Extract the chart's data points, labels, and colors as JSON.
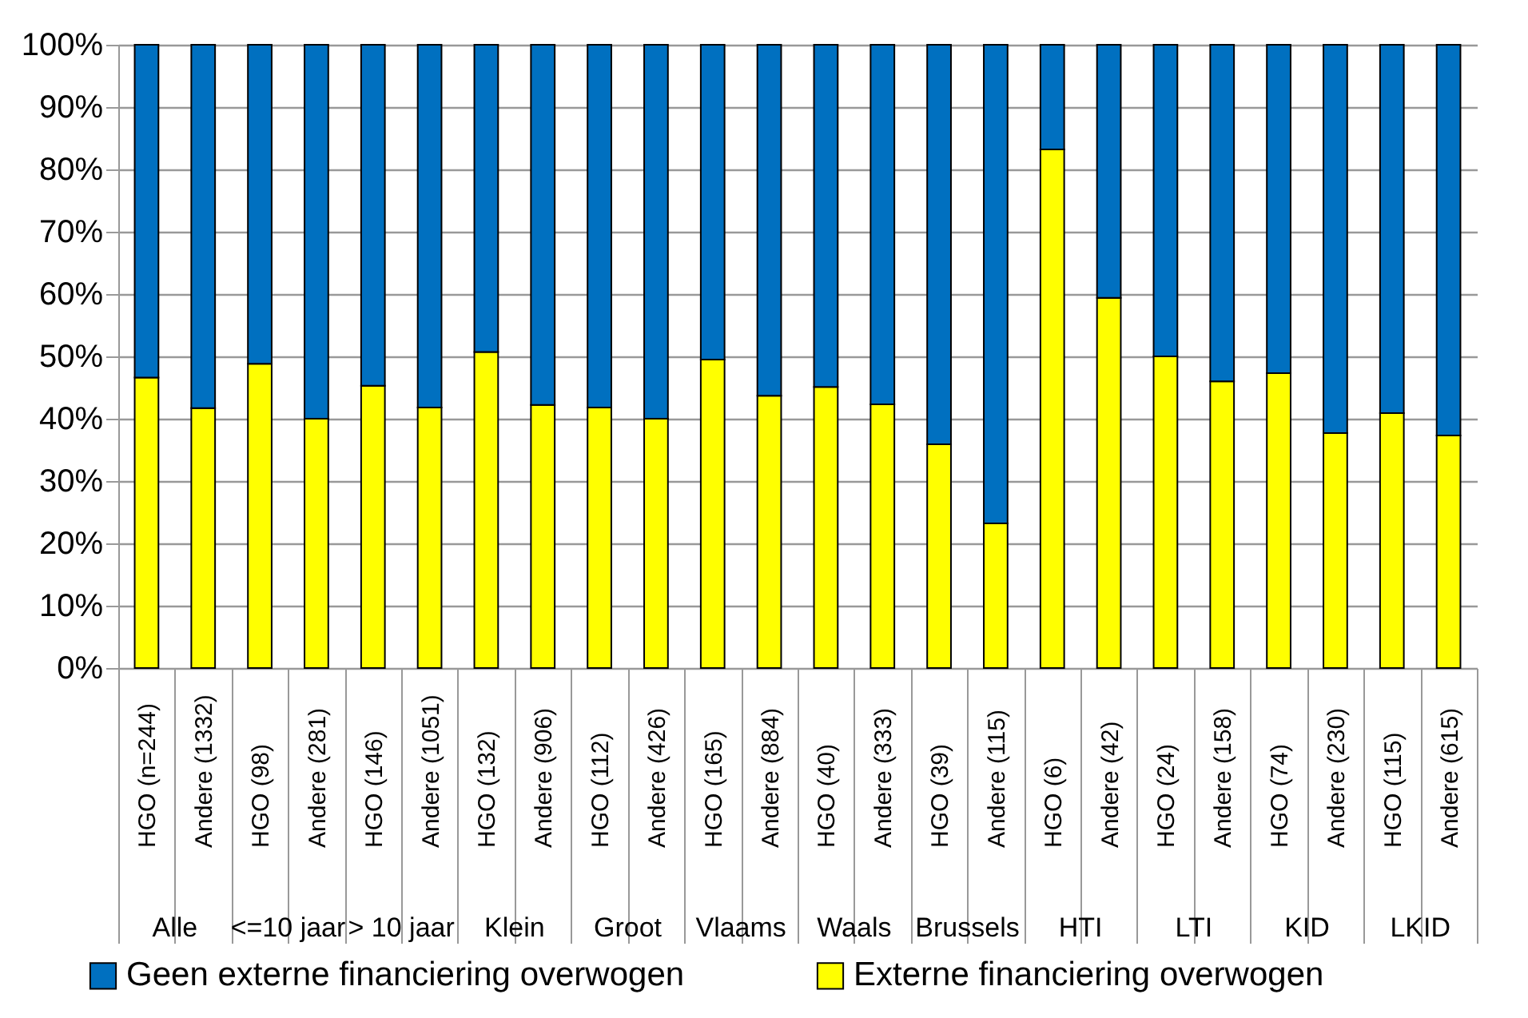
{
  "chart_data": {
    "type": "bar",
    "stacked": true,
    "categories": [
      "HGO (n=244)",
      "Andere (1332)",
      "HGO (98)",
      "Andere (281)",
      "HGO (146)",
      "Andere (1051)",
      "HGO (132)",
      "Andere (906)",
      "HGO (112)",
      "Andere (426)",
      "HGO (165)",
      "Andere (884)",
      "HGO (40)",
      "Andere (333)",
      "HGO (39)",
      "Andere (115)",
      "HGO (6)",
      "Andere (42)",
      "HGO (24)",
      "Andere (158)",
      "HGO (74)",
      "Andere (230)",
      "HGO (115)",
      "Andere (615)"
    ],
    "annotations": [
      "Alle",
      "<=10 jaar",
      "> 10 jaar",
      "Klein",
      "Groot",
      "Vlaams",
      "Waals",
      "Brussels",
      "HTI",
      "LTI",
      "KID",
      "LKID"
    ],
    "series": [
      {
        "name": "Externe financiering overwogen",
        "color": "#ffff00",
        "values": [
          46.6,
          41.7,
          48.8,
          40.0,
          45.3,
          41.8,
          50.7,
          42.2,
          41.8,
          40.0,
          49.5,
          43.7,
          45.1,
          42.3,
          35.9,
          23.2,
          83.2,
          59.4,
          50.0,
          46.0,
          47.3,
          37.7,
          40.9,
          37.3
        ]
      },
      {
        "name": "Geen externe financiering overwogen",
        "color": "#0070c0",
        "values": [
          53.4,
          58.3,
          51.2,
          60.0,
          54.7,
          58.2,
          49.3,
          57.8,
          58.2,
          60.0,
          50.5,
          56.3,
          54.9,
          57.7,
          64.1,
          76.8,
          16.8,
          40.6,
          50.0,
          54.0,
          52.7,
          62.3,
          59.1,
          62.7
        ]
      }
    ],
    "ylim": [
      0,
      100
    ],
    "yticks": [
      {
        "value": 0,
        "label": "0%"
      },
      {
        "value": 10,
        "label": "10%"
      },
      {
        "value": 20,
        "label": "20%"
      },
      {
        "value": 30,
        "label": "30%"
      },
      {
        "value": 40,
        "label": "40%"
      },
      {
        "value": 50,
        "label": "50%"
      },
      {
        "value": 60,
        "label": "60%"
      },
      {
        "value": 70,
        "label": "70%"
      },
      {
        "value": 80,
        "label": "80%"
      },
      {
        "value": 90,
        "label": "90%"
      },
      {
        "value": 100,
        "label": "100%"
      }
    ],
    "grid": "y",
    "legend": "bottom"
  }
}
